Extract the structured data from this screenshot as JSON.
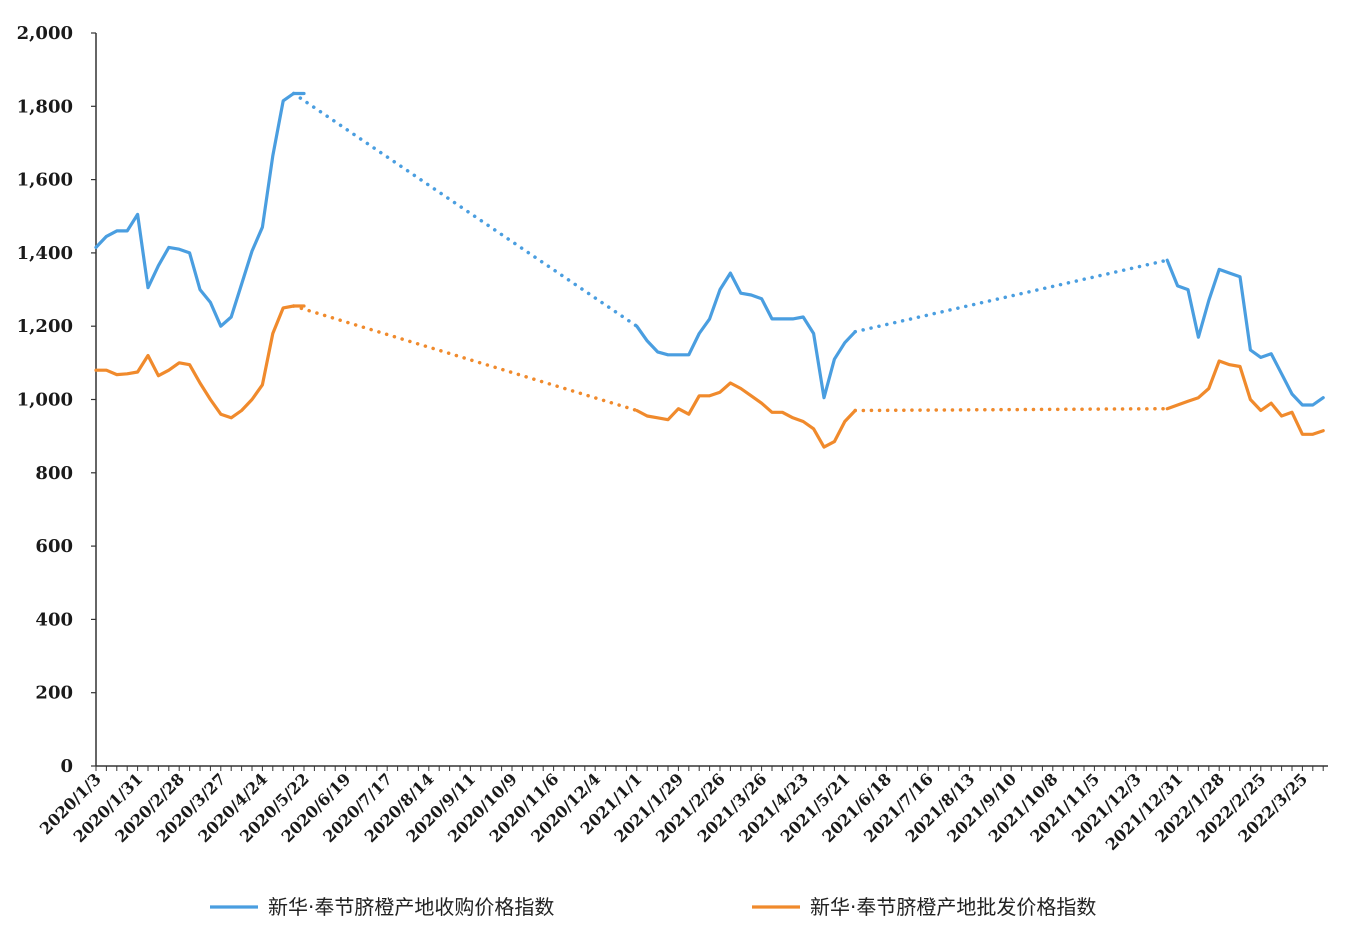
{
  "chart_data": {
    "type": "line",
    "ylim": [
      0,
      2000
    ],
    "yticks": [
      0,
      200,
      400,
      600,
      800,
      1000,
      1200,
      1400,
      1600,
      1800,
      2000
    ],
    "ytick_labels": [
      "0",
      "200",
      "400",
      "600",
      "800",
      "1,000",
      "1,200",
      "1,400",
      "1,600",
      "1,800",
      "2,000"
    ],
    "xtick_labels": [
      "2020/1/3",
      "2020/1/31",
      "2020/2/28",
      "2020/3/27",
      "2020/4/24",
      "2020/5/22",
      "2020/6/19",
      "2020/7/17",
      "2020/8/14",
      "2020/9/11",
      "2020/10/9",
      "2020/11/6",
      "2020/12/4",
      "2021/1/1",
      "2021/1/29",
      "2021/2/26",
      "2021/3/26",
      "2021/4/23",
      "2021/5/21",
      "2021/6/18",
      "2021/7/16",
      "2021/8/13",
      "2021/9/10",
      "2021/10/8",
      "2021/11/5",
      "2021/12/3",
      "2021/12/31",
      "2022/1/28",
      "2022/2/25",
      "2022/3/25"
    ],
    "x_step_weeks": 1,
    "x_count": 119,
    "legend_position": "bottom",
    "series": [
      {
        "name": "新华·奉节脐橙产地收购价格指数",
        "color": "#4a9ee0",
        "segments": [
          {
            "style": "solid",
            "x": [
              0,
              1,
              2,
              3,
              4,
              5,
              6,
              7,
              8,
              9,
              10,
              11,
              12,
              13,
              14,
              15,
              16,
              17,
              18,
              19,
              20
            ],
            "y": [
              1415,
              1445,
              1460,
              1460,
              1505,
              1305,
              1365,
              1415,
              1410,
              1400,
              1300,
              1265,
              1200,
              1225,
              1315,
              1405,
              1470,
              1665,
              1815,
              1835,
              1835
            ]
          },
          {
            "style": "dotted",
            "x": [
              19,
              52
            ],
            "y": [
              1835,
              1200
            ]
          },
          {
            "style": "solid",
            "x": [
              52,
              53,
              54,
              55,
              56,
              57,
              58,
              59,
              60,
              61,
              62,
              63,
              64,
              65,
              66,
              67,
              68,
              69,
              70,
              71,
              72,
              73
            ],
            "y": [
              1200,
              1160,
              1130,
              1122,
              1122,
              1122,
              1180,
              1220,
              1300,
              1345,
              1290,
              1285,
              1275,
              1220,
              1220,
              1220,
              1225,
              1180,
              1005,
              1110,
              1155,
              1185
            ]
          },
          {
            "style": "dotted",
            "x": [
              73,
              103
            ],
            "y": [
              1185,
              1380
            ]
          },
          {
            "style": "solid",
            "x": [
              103,
              104,
              105,
              106,
              107,
              108,
              109,
              110,
              111,
              112,
              113,
              114,
              115,
              116,
              117,
              118
            ],
            "y": [
              1380,
              1310,
              1300,
              1170,
              1270,
              1355,
              1345,
              1335,
              1135,
              1115,
              1125,
              1070,
              1015,
              985,
              985,
              1005
            ]
          }
        ]
      },
      {
        "name": "新华·奉节脐橙产地批发价格指数",
        "color": "#f08a2c",
        "segments": [
          {
            "style": "solid",
            "x": [
              0,
              1,
              2,
              3,
              4,
              5,
              6,
              7,
              8,
              9,
              10,
              11,
              12,
              13,
              14,
              15,
              16,
              17,
              18,
              19,
              20
            ],
            "y": [
              1080,
              1080,
              1068,
              1070,
              1075,
              1120,
              1065,
              1080,
              1100,
              1095,
              1045,
              1000,
              960,
              950,
              970,
              1000,
              1040,
              1180,
              1250,
              1255,
              1255
            ]
          },
          {
            "style": "dotted",
            "x": [
              19,
              52
            ],
            "y": [
              1255,
              970
            ]
          },
          {
            "style": "solid",
            "x": [
              52,
              53,
              54,
              55,
              56,
              57,
              58,
              59,
              60,
              61,
              62,
              63,
              64,
              65,
              66,
              67,
              68,
              69,
              70,
              71,
              72,
              73
            ],
            "y": [
              970,
              955,
              950,
              945,
              975,
              960,
              1010,
              1010,
              1020,
              1045,
              1030,
              1010,
              990,
              965,
              965,
              950,
              940,
              920,
              870,
              885,
              940,
              970
            ]
          },
          {
            "style": "dotted",
            "x": [
              73,
              103
            ],
            "y": [
              970,
              975
            ]
          },
          {
            "style": "solid",
            "x": [
              103,
              104,
              105,
              106,
              107,
              108,
              109,
              110,
              111,
              112,
              113,
              114,
              115,
              116,
              117,
              118
            ],
            "y": [
              975,
              985,
              995,
              1005,
              1030,
              1105,
              1095,
              1090,
              1000,
              970,
              990,
              955,
              965,
              905,
              905,
              915
            ]
          }
        ]
      }
    ]
  }
}
